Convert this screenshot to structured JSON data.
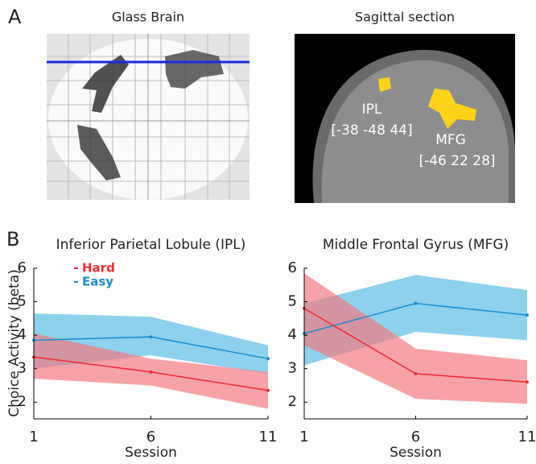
{
  "panel_a": {
    "label": "A",
    "glass_brain_title": "Glass Brain",
    "sagittal_title": "Sagittal section",
    "annotations": [
      {
        "name": "IPL",
        "coords": "[-38 -48 44]"
      },
      {
        "name": "MFG",
        "coords": "[-46 22 28]"
      }
    ]
  },
  "panel_b": {
    "label": "B",
    "ylabel": "Choice Activity (beta)"
  },
  "chart_data": [
    {
      "type": "line",
      "title": "Inferior Parietal Lobule (IPL)",
      "xlabel": "Session",
      "x": [
        1,
        6,
        11
      ],
      "xlim": [
        1,
        11
      ],
      "xticks": [
        1,
        6,
        11
      ],
      "ylim": [
        1.5,
        6
      ],
      "yticks": [
        2,
        3,
        4,
        5,
        6
      ],
      "legend": "upper left",
      "series": [
        {
          "name": "Easy",
          "color": "#1b8bc9",
          "band_color": "#5cbde4",
          "values": [
            3.85,
            3.95,
            3.3
          ],
          "lower": [
            3.0,
            3.4,
            2.85
          ],
          "upper": [
            4.65,
            4.55,
            3.7
          ]
        },
        {
          "name": "Hard",
          "color": "#ef2b33",
          "band_color": "#f47a82",
          "values": [
            3.35,
            2.9,
            2.35
          ],
          "lower": [
            2.7,
            2.5,
            1.8
          ],
          "upper": [
            4.05,
            3.3,
            2.9
          ]
        }
      ]
    },
    {
      "type": "line",
      "title": "Middle Frontal Gyrus (MFG)",
      "xlabel": "Session",
      "x": [
        1,
        6,
        11
      ],
      "xlim": [
        1,
        11
      ],
      "xticks": [
        1,
        6,
        11
      ],
      "ylim": [
        1.5,
        6
      ],
      "yticks": [
        2,
        3,
        4,
        5,
        6
      ],
      "series": [
        {
          "name": "Easy",
          "color": "#1b8bc9",
          "band_color": "#5cbde4",
          "values": [
            4.05,
            4.95,
            4.6
          ],
          "lower": [
            3.1,
            4.1,
            3.85
          ],
          "upper": [
            4.95,
            5.8,
            5.35
          ]
        },
        {
          "name": "Hard",
          "color": "#ef2b33",
          "band_color": "#f47a82",
          "values": [
            4.8,
            2.85,
            2.6
          ],
          "lower": [
            3.7,
            2.1,
            1.95
          ],
          "upper": [
            5.85,
            3.6,
            3.25
          ]
        }
      ]
    }
  ]
}
